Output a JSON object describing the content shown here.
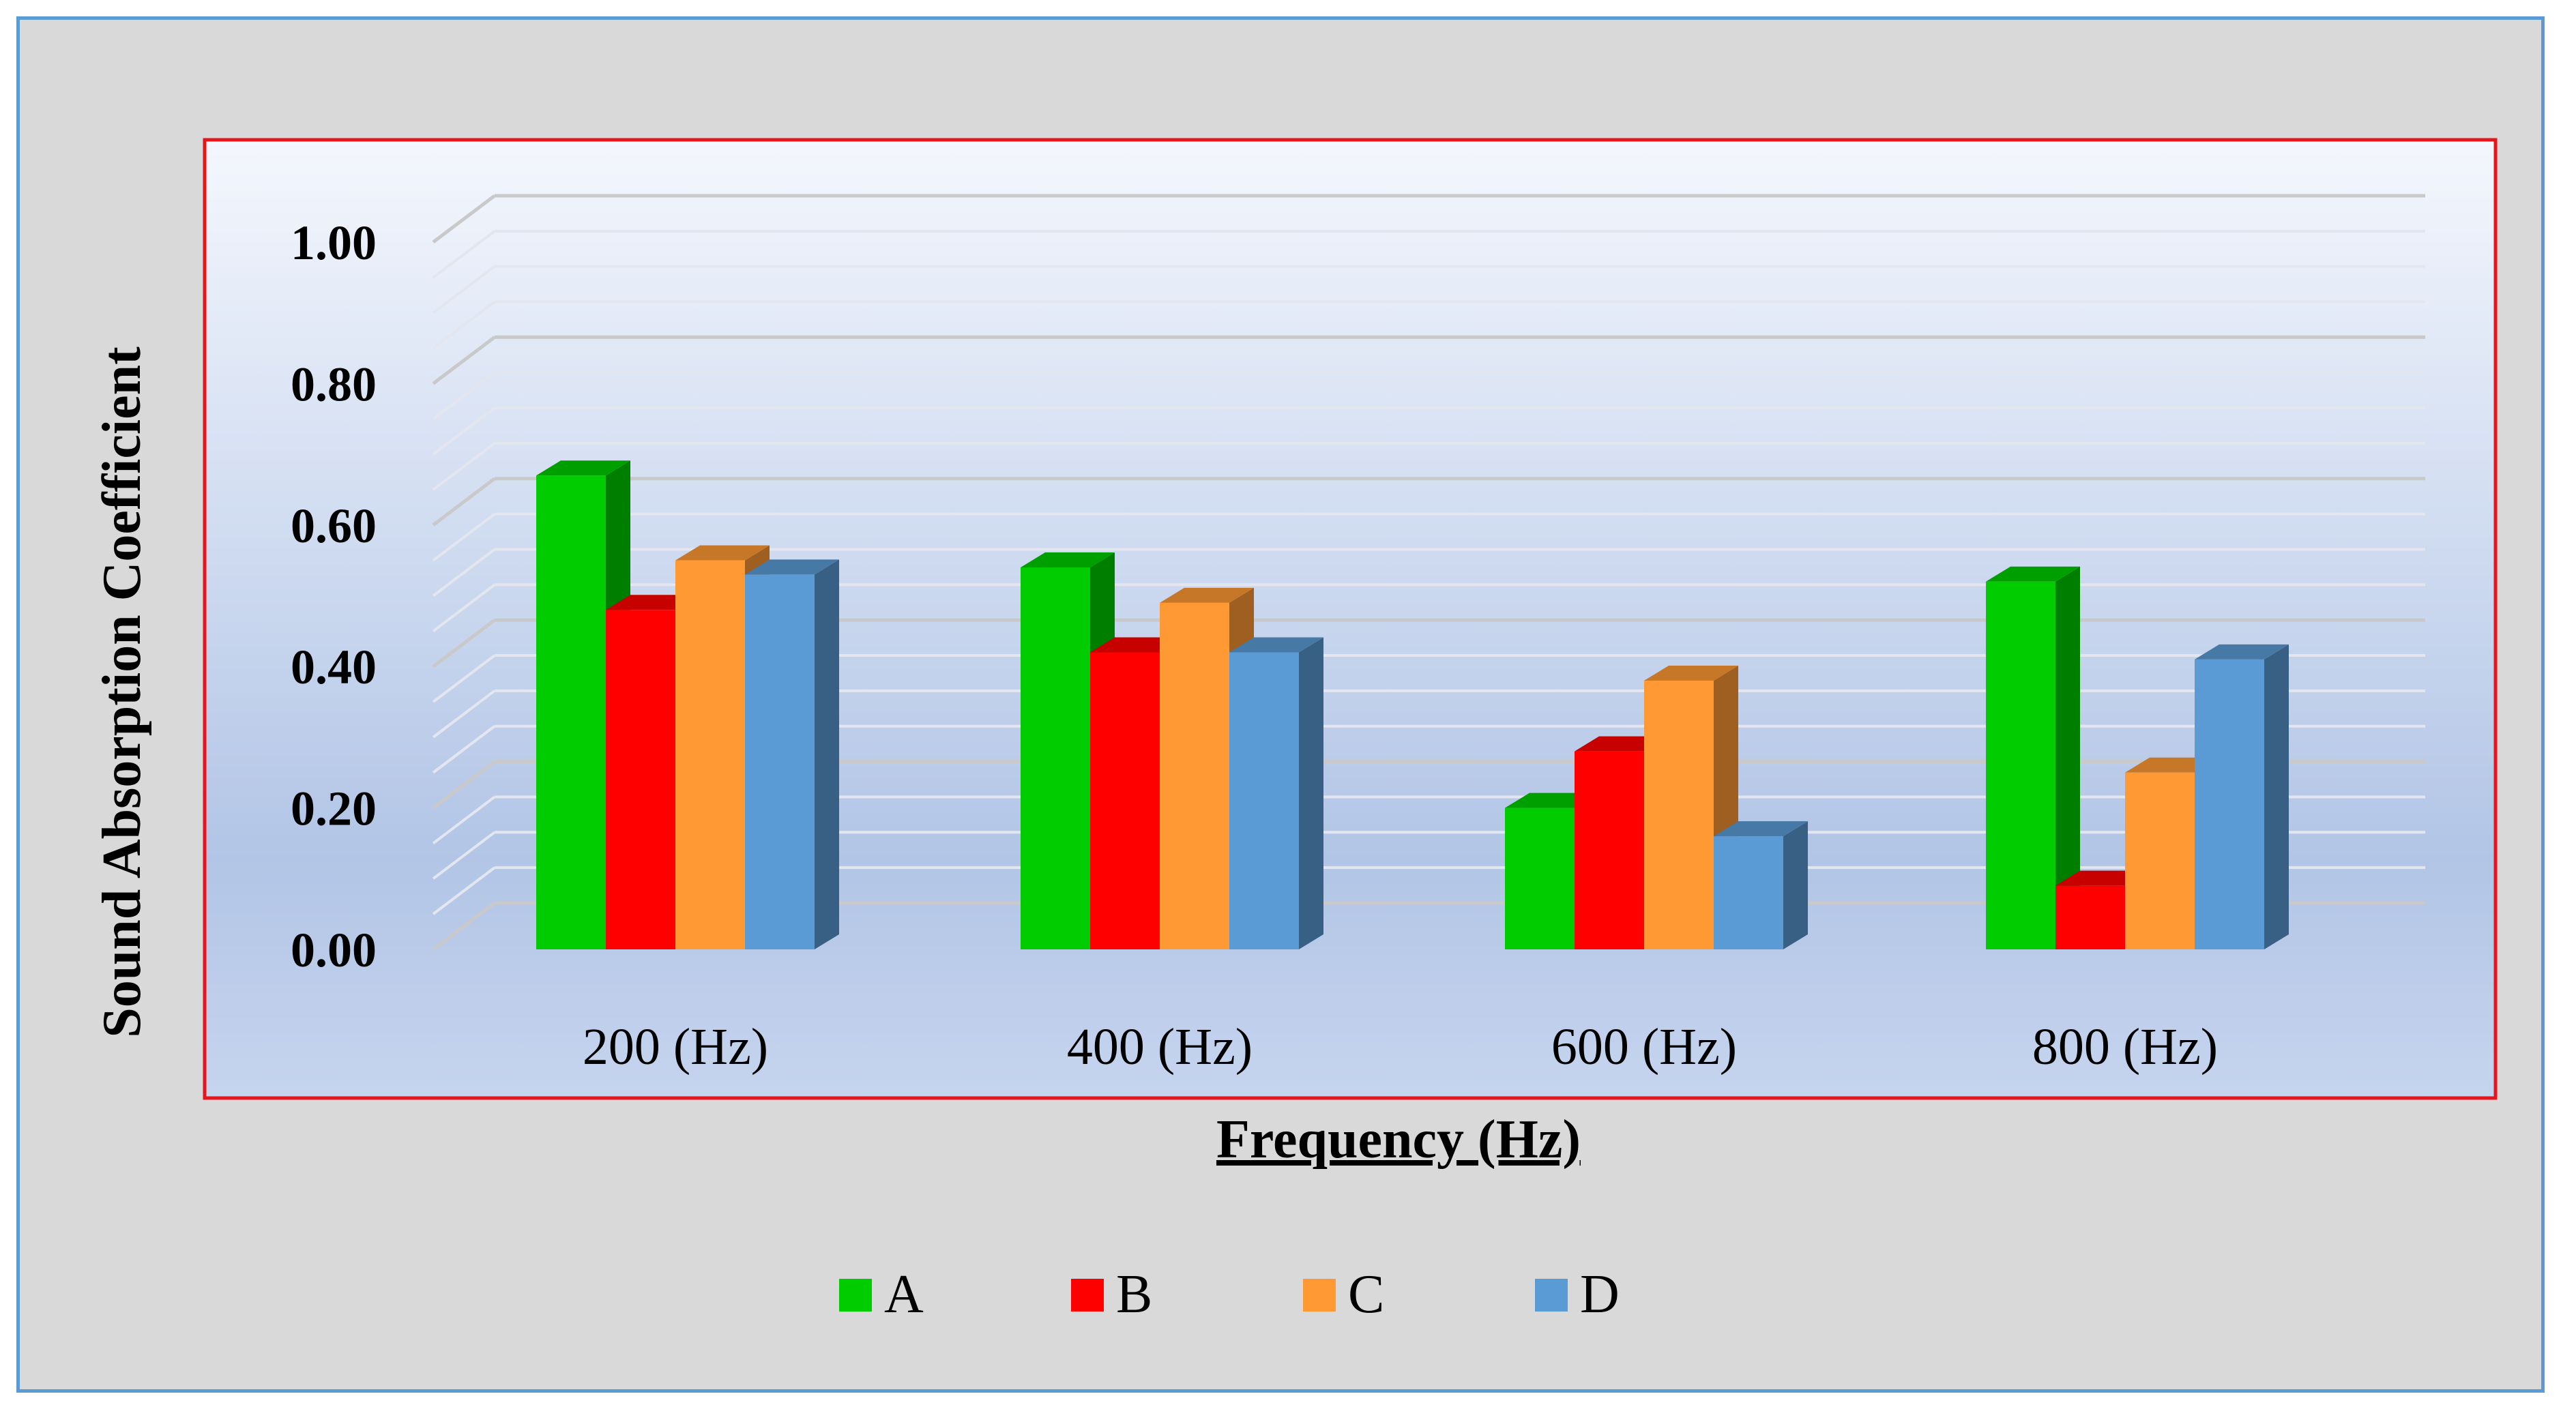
{
  "chart_data": {
    "type": "bar",
    "categories": [
      "200 (Hz)",
      "400 (Hz)",
      "600 (Hz)",
      "800 (Hz)"
    ],
    "series": [
      {
        "name": "A",
        "color": "#00cc00",
        "values": [
          0.67,
          0.54,
          0.2,
          0.52
        ]
      },
      {
        "name": "B",
        "color": "#ff0000",
        "values": [
          0.48,
          0.42,
          0.28,
          0.09
        ]
      },
      {
        "name": "C",
        "color": "#ff9933",
        "values": [
          0.55,
          0.49,
          0.38,
          0.25
        ]
      },
      {
        "name": "D",
        "color": "#5b9bd5",
        "values": [
          0.53,
          0.42,
          0.16,
          0.41
        ]
      }
    ],
    "xlabel": "Frequency (Hz)",
    "ylabel": "Sound Absorption Coefficient",
    "ylim": [
      0,
      1
    ],
    "yticks": [
      "0.00",
      "0.20",
      "0.40",
      "0.60",
      "0.80",
      "1.00"
    ],
    "legend_position": "bottom",
    "grid": true,
    "style": "3d-clustered-column"
  }
}
